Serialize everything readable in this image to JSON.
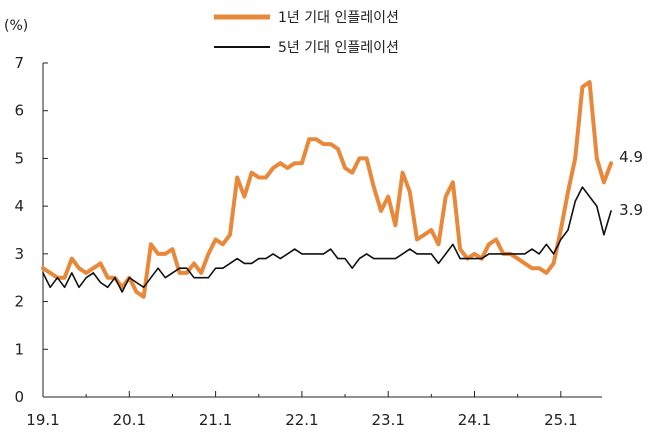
{
  "chart_data": {
    "type": "line",
    "y_unit_label": "(%)",
    "ylim": [
      0,
      7
    ],
    "y_ticks": [
      "0",
      "1",
      "2",
      "3",
      "4",
      "5",
      "6",
      "7"
    ],
    "x_tick_labels": [
      "19.1",
      "20.1",
      "21.1",
      "22.1",
      "23.1",
      "24.1",
      "25.1"
    ],
    "x_start": "2019-01",
    "grid": false,
    "legend_position": "top-center",
    "series": [
      {
        "name": "1년 기대 인플레이션",
        "color": "#E8883A",
        "end_label": "4.9",
        "values": [
          2.7,
          2.6,
          2.5,
          2.5,
          2.9,
          2.7,
          2.6,
          2.7,
          2.8,
          2.5,
          2.5,
          2.3,
          2.5,
          2.2,
          2.1,
          3.2,
          3.0,
          3.0,
          3.1,
          2.6,
          2.6,
          2.8,
          2.6,
          3.0,
          3.3,
          3.2,
          3.4,
          4.6,
          4.2,
          4.7,
          4.6,
          4.6,
          4.8,
          4.9,
          4.8,
          4.9,
          4.9,
          5.4,
          5.4,
          5.3,
          5.3,
          5.2,
          4.8,
          4.7,
          5.0,
          5.0,
          4.4,
          3.9,
          4.2,
          3.6,
          4.7,
          4.3,
          3.3,
          3.4,
          3.5,
          3.2,
          4.2,
          4.5,
          3.1,
          2.9,
          3.0,
          2.9,
          3.2,
          3.3,
          3.0,
          3.0,
          2.9,
          2.8,
          2.7,
          2.7,
          2.6,
          2.8,
          3.5,
          4.3,
          5.0,
          6.5,
          6.6,
          5.0,
          4.5,
          4.9
        ]
      },
      {
        "name": "5년 기대 인플레이션",
        "color": "#111111",
        "end_label": "3.9",
        "values": [
          2.6,
          2.3,
          2.5,
          2.3,
          2.6,
          2.3,
          2.5,
          2.6,
          2.4,
          2.3,
          2.5,
          2.2,
          2.5,
          2.4,
          2.3,
          2.5,
          2.7,
          2.5,
          2.6,
          2.7,
          2.7,
          2.5,
          2.5,
          2.5,
          2.7,
          2.7,
          2.8,
          2.9,
          2.8,
          2.8,
          2.9,
          2.9,
          3.0,
          2.9,
          3.0,
          3.1,
          3.0,
          3.0,
          3.0,
          3.0,
          3.1,
          2.9,
          2.9,
          2.7,
          2.9,
          3.0,
          2.9,
          2.9,
          2.9,
          2.9,
          3.0,
          3.1,
          3.0,
          3.0,
          3.0,
          2.8,
          3.0,
          3.2,
          2.9,
          2.9,
          2.9,
          2.9,
          3.0,
          3.0,
          3.0,
          3.0,
          3.0,
          3.0,
          3.1,
          3.0,
          3.2,
          3.0,
          3.3,
          3.5,
          4.1,
          4.4,
          4.2,
          4.0,
          3.4,
          3.9
        ]
      }
    ]
  }
}
